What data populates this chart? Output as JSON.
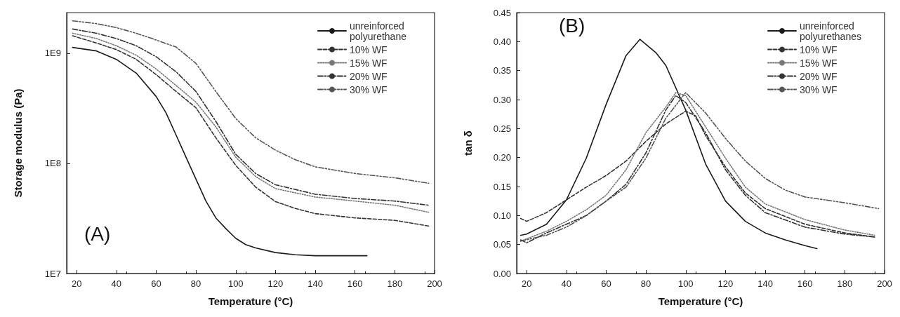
{
  "chart_data": [
    {
      "type": "line",
      "xlabel": "Temperature (°C)",
      "ylabel": "Storage modulus (Pa)",
      "annotations": [
        "(A)"
      ],
      "log": "y",
      "grid": false,
      "legend": "top right",
      "marker": "none",
      "xlim": [
        15,
        200
      ],
      "xticks": [
        20,
        40,
        60,
        80,
        100,
        120,
        140,
        160,
        180,
        200
      ],
      "ylim": [
        10000000,
        2340000000
      ],
      "yticks": [
        {
          "value": 10000000,
          "label": "1E7"
        },
        {
          "value": 100000000,
          "label": "1E8"
        },
        {
          "value": 1000000000,
          "label": "1E9"
        }
      ],
      "series": [
        {
          "name": "unreinforced polyurethane",
          "color": "#1a1a1a",
          "line_style": "solid",
          "x": [
            18,
            30,
            40,
            50,
            60,
            65,
            70,
            75,
            80,
            85,
            90,
            95,
            100,
            105,
            110,
            120,
            130,
            140,
            166
          ],
          "values": [
            1130000000,
            1050000000,
            880000000,
            660000000,
            405000000,
            287000000,
            181000000,
            114000000,
            72000000,
            45500000,
            32000000,
            25600000,
            20900000,
            18300000,
            17100000,
            15500000,
            14800000,
            14500000,
            14500000
          ]
        },
        {
          "name": "10% WF",
          "color": "#333333",
          "line_style": "dashed",
          "x": [
            18,
            30,
            40,
            50,
            60,
            70,
            80,
            90,
            100,
            110,
            120,
            130,
            140,
            160,
            180,
            197
          ],
          "values": [
            1440000000,
            1240000000,
            1080000000,
            880000000,
            640000000,
            450000000,
            320000000,
            171000000,
            96000000,
            61000000,
            45000000,
            39000000,
            35000000,
            32000000,
            30400000,
            27000000
          ]
        },
        {
          "name": "15% WF",
          "color": "#777777",
          "line_style": "dotted",
          "x": [
            18,
            30,
            40,
            50,
            60,
            70,
            80,
            90,
            100,
            110,
            120,
            140,
            160,
            180,
            197
          ],
          "values": [
            1520000000,
            1360000000,
            1170000000,
            960000000,
            720000000,
            510000000,
            360000000,
            215000000,
            114000000,
            76000000,
            59000000,
            49500000,
            45500000,
            41700000,
            36000000
          ]
        },
        {
          "name": "20% WF",
          "color": "#333333",
          "line_style": "dashdot",
          "x": [
            18,
            30,
            40,
            50,
            60,
            70,
            80,
            90,
            100,
            110,
            120,
            140,
            160,
            180,
            197
          ],
          "values": [
            1660000000,
            1520000000,
            1360000000,
            1170000000,
            930000000,
            680000000,
            450000000,
            241000000,
            121000000,
            81000000,
            64000000,
            52500000,
            48000000,
            45500000,
            41700000
          ]
        },
        {
          "name": "30% WF",
          "color": "#555555",
          "line_style": "dashdotdot",
          "x": [
            18,
            30,
            40,
            50,
            60,
            70,
            80,
            90,
            100,
            110,
            120,
            130,
            140,
            160,
            180,
            197
          ],
          "values": [
            1970000000,
            1860000000,
            1710000000,
            1520000000,
            1320000000,
            1140000000,
            810000000,
            450000000,
            256000000,
            171000000,
            132000000,
            108000000,
            93000000,
            81000000,
            74000000,
            66000000
          ]
        }
      ]
    },
    {
      "type": "line",
      "xlabel": "Temperature (°C)",
      "ylabel": "tan δ",
      "annotations": [
        "(B)"
      ],
      "grid": false,
      "legend": "top right",
      "marker": "none",
      "xlim": [
        15,
        200
      ],
      "xticks": [
        20,
        40,
        60,
        80,
        100,
        120,
        140,
        160,
        180,
        200
      ],
      "ylim": [
        0,
        0.45
      ],
      "yticks": [
        {
          "value": 0,
          "label": "0.00"
        },
        {
          "value": 0.05,
          "label": "0.05"
        },
        {
          "value": 0.1,
          "label": "0.10"
        },
        {
          "value": 0.15,
          "label": "0.15"
        },
        {
          "value": 0.2,
          "label": "0.20"
        },
        {
          "value": 0.25,
          "label": "0.25"
        },
        {
          "value": 0.3,
          "label": "0.30"
        },
        {
          "value": 0.35,
          "label": "0.35"
        },
        {
          "value": 0.4,
          "label": "0.40"
        },
        {
          "value": 0.45,
          "label": "0.45"
        }
      ],
      "series": [
        {
          "name": "unreinforced polyurethanes",
          "color": "#1a1a1a",
          "line_style": "solid",
          "x": [
            17,
            20,
            30,
            40,
            50,
            60,
            70,
            77,
            85,
            90,
            100,
            110,
            120,
            130,
            140,
            150,
            160,
            166
          ],
          "values": [
            0.066,
            0.068,
            0.085,
            0.127,
            0.199,
            0.292,
            0.376,
            0.404,
            0.381,
            0.359,
            0.282,
            0.189,
            0.125,
            0.09,
            0.07,
            0.058,
            0.048,
            0.043
          ]
        },
        {
          "name": "10% WF",
          "color": "#333333",
          "line_style": "dashed",
          "x": [
            17,
            20,
            30,
            40,
            50,
            60,
            70,
            80,
            90,
            100,
            105,
            110,
            120,
            130,
            140,
            160,
            180,
            195
          ],
          "values": [
            0.095,
            0.09,
            0.105,
            0.127,
            0.149,
            0.169,
            0.194,
            0.228,
            0.258,
            0.28,
            0.272,
            0.238,
            0.184,
            0.139,
            0.112,
            0.085,
            0.07,
            0.063
          ]
        },
        {
          "name": "15% WF",
          "color": "#777777",
          "line_style": "dotted",
          "x": [
            17,
            30,
            40,
            50,
            60,
            70,
            80,
            90,
            95,
            100,
            110,
            120,
            130,
            140,
            160,
            180,
            195
          ],
          "values": [
            0.056,
            0.073,
            0.09,
            0.11,
            0.135,
            0.179,
            0.243,
            0.287,
            0.312,
            0.307,
            0.253,
            0.199,
            0.149,
            0.12,
            0.093,
            0.075,
            0.066
          ]
        },
        {
          "name": "20% WF",
          "color": "#333333",
          "line_style": "dashdot",
          "x": [
            17,
            20,
            30,
            40,
            50,
            60,
            70,
            80,
            90,
            95,
            100,
            110,
            120,
            130,
            140,
            160,
            180,
            195
          ],
          "values": [
            0.058,
            0.053,
            0.07,
            0.085,
            0.1,
            0.125,
            0.154,
            0.208,
            0.282,
            0.307,
            0.295,
            0.243,
            0.179,
            0.135,
            0.105,
            0.08,
            0.068,
            0.063
          ]
        },
        {
          "name": "30% WF",
          "color": "#555555",
          "line_style": "dashdotdot",
          "x": [
            17,
            30,
            40,
            50,
            60,
            70,
            80,
            90,
            100,
            110,
            120,
            130,
            140,
            150,
            160,
            180,
            197
          ],
          "values": [
            0.056,
            0.066,
            0.08,
            0.1,
            0.125,
            0.149,
            0.199,
            0.268,
            0.312,
            0.277,
            0.233,
            0.194,
            0.164,
            0.144,
            0.132,
            0.122,
            0.112
          ]
        }
      ]
    }
  ]
}
